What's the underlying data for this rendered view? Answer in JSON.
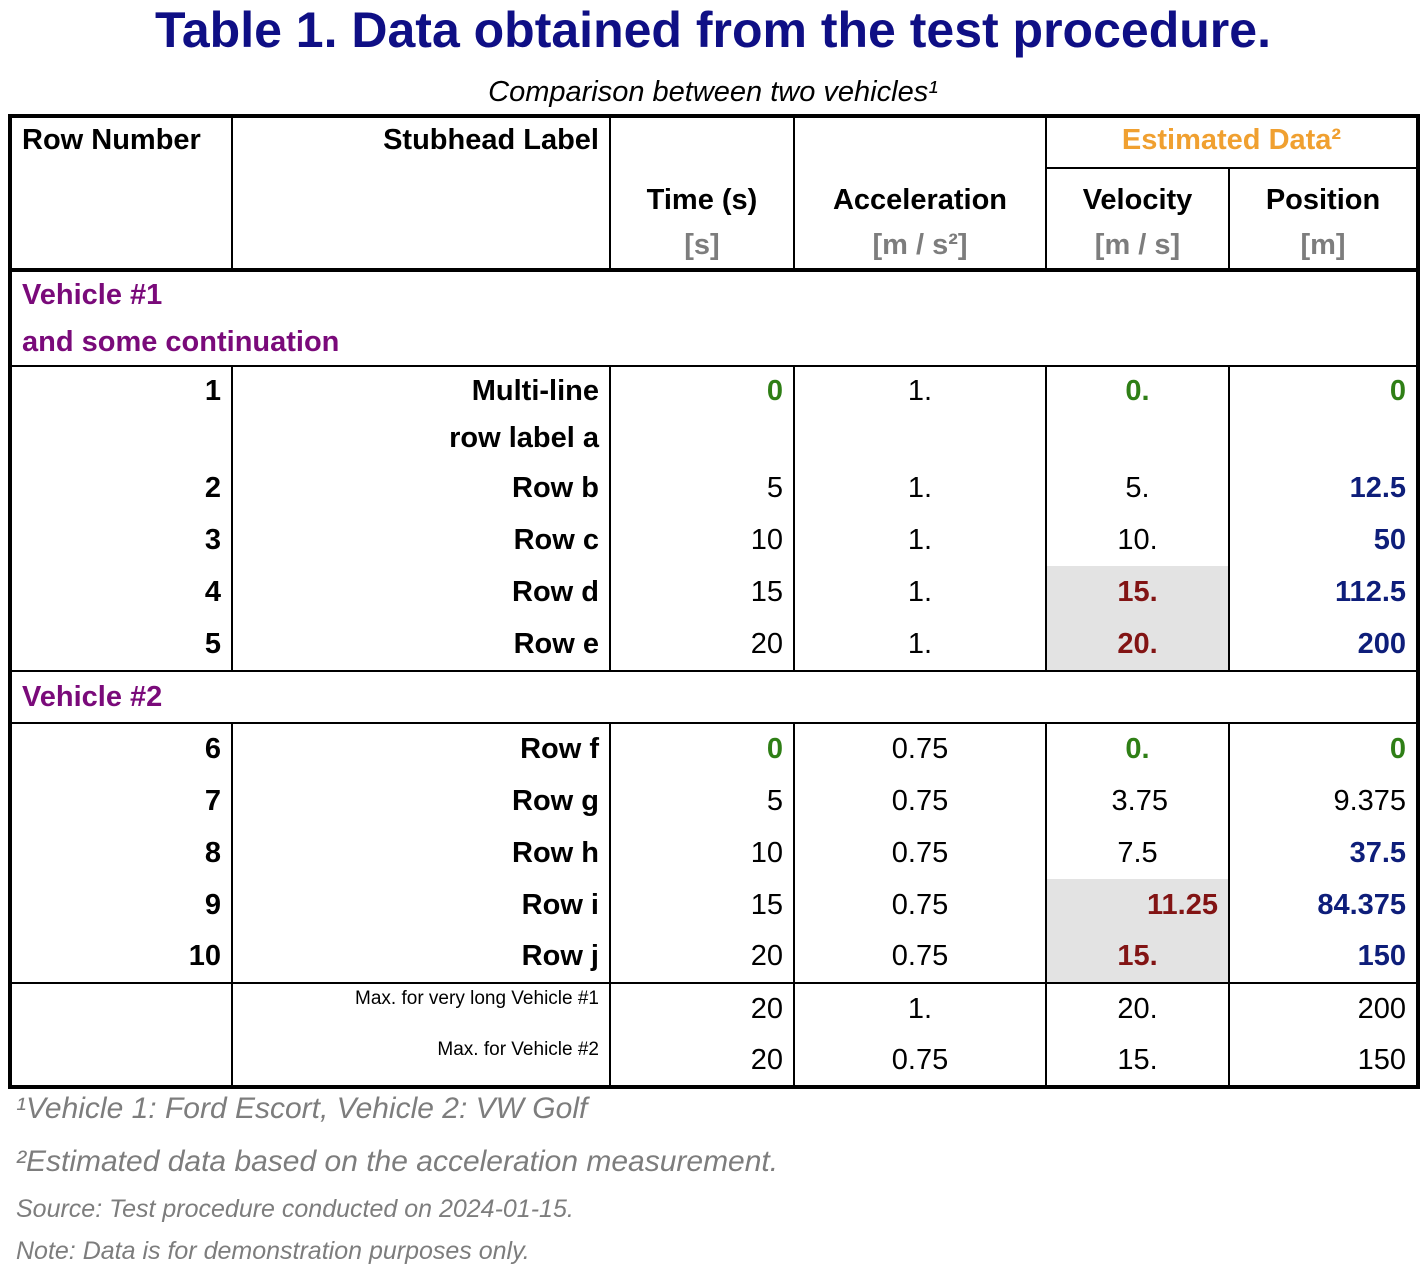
{
  "title": "Table 1. Data obtained from the test procedure.",
  "subtitle": "Comparison between two vehicles¹",
  "header": {
    "row_number": "Row Number",
    "stubhead": "Stubhead Label",
    "spanner": "Estimated Data²",
    "columns": [
      "Time (s)",
      "Acceleration",
      "Velocity",
      "Position"
    ],
    "units": [
      "[s]",
      "[m / s²]",
      "[m / s]",
      "[m]"
    ]
  },
  "groups": [
    {
      "label_lines": [
        "Vehicle #1",
        "and some continuation"
      ],
      "rows": [
        {
          "num": "1",
          "label_lines": [
            "Multi-line",
            "row label a"
          ],
          "time": "0",
          "accel": "1.",
          "velocity": "0.",
          "position": "0"
        },
        {
          "num": "2",
          "label": "Row b",
          "time": "5",
          "accel": "1.",
          "velocity": "5.",
          "position": "12.5"
        },
        {
          "num": "3",
          "label": "Row c",
          "time": "10",
          "accel": "1.",
          "velocity": "10.",
          "position": "50"
        },
        {
          "num": "4",
          "label": "Row d",
          "time": "15",
          "accel": "1.",
          "velocity": "15.",
          "position": "112.5"
        },
        {
          "num": "5",
          "label": "Row e",
          "time": "20",
          "accel": "1.",
          "velocity": "20.",
          "position": "200"
        }
      ]
    },
    {
      "label": "Vehicle #2",
      "rows": [
        {
          "num": "6",
          "label": "Row f",
          "time": "0",
          "accel": "0.75",
          "velocity": "0.",
          "position": "0"
        },
        {
          "num": "7",
          "label": "Row g",
          "time": "5",
          "accel": "0.75",
          "velocity": "3.75",
          "position": "9.375"
        },
        {
          "num": "8",
          "label": "Row h",
          "time": "10",
          "accel": "0.75",
          "velocity": "7.5",
          "position": "37.5"
        },
        {
          "num": "9",
          "label": "Row i",
          "time": "15",
          "accel": "0.75",
          "velocity": "11.25",
          "position": "84.375"
        },
        {
          "num": "10",
          "label": "Row j",
          "time": "20",
          "accel": "0.75",
          "velocity": "15.",
          "position": "150"
        }
      ]
    }
  ],
  "summary": [
    {
      "label": "Max. for very long Vehicle #1",
      "time": "20",
      "accel": "1.",
      "velocity": "20.",
      "position": "200"
    },
    {
      "label": "Max. for Vehicle #2",
      "time": "20",
      "accel": "0.75",
      "velocity": "15.",
      "position": "150"
    }
  ],
  "footnotes": [
    "¹Vehicle 1: Ford Escort, Vehicle 2: VW Golf",
    "²Estimated data based on the acceleration measurement."
  ],
  "source_notes": [
    "Source: Test procedure conducted on 2024-01-15.",
    "Note: Data is for demonstration purposes only."
  ],
  "colors": {
    "title": "#0f0f85",
    "spanner": "#f0a030",
    "group_label": "#7a0a7a",
    "zero_value": "#2f7f16",
    "high_velocity": "#821414",
    "position_highlight": "#0e1e7a",
    "shading": "#e3e3e3",
    "units_and_notes": "#7d7d7d"
  }
}
